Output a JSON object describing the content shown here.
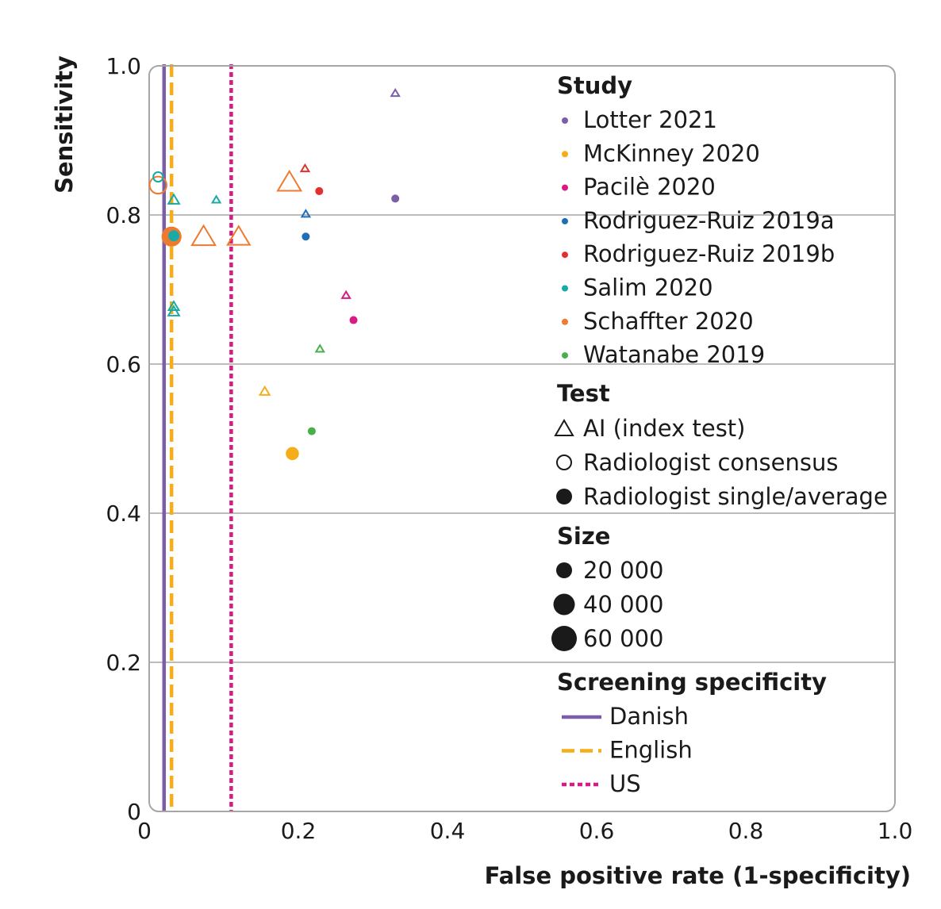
{
  "chart_data": {
    "type": "scatter",
    "xlabel": "False positive rate (1-specificity)",
    "ylabel": "Sensitivity",
    "xlim": [
      0,
      1.0
    ],
    "ylim": [
      0,
      1.0
    ],
    "x_ticks": [
      "0",
      "0.2",
      "0.4",
      "0.6",
      "0.8",
      "1.0"
    ],
    "y_ticks": [
      "0",
      "0.2",
      "0.4",
      "0.6",
      "0.8",
      "1.0"
    ],
    "grid": "horizontal",
    "legend_position": "right",
    "legend": {
      "study_title": "Study",
      "studies": [
        {
          "name": "Lotter 2021",
          "color": "#7a5fa8"
        },
        {
          "name": "McKinney 2020",
          "color": "#f5ae1a"
        },
        {
          "name": "Pacilè 2020",
          "color": "#d81b84"
        },
        {
          "name": "Rodriguez-Ruiz 2019a",
          "color": "#1f6fb5"
        },
        {
          "name": "Rodriguez-Ruiz 2019b",
          "color": "#e0312f"
        },
        {
          "name": "Salim 2020",
          "color": "#19aaa6"
        },
        {
          "name": "Schaffter 2020",
          "color": "#ee7a30"
        },
        {
          "name": "Watanabe 2019",
          "color": "#48b04a"
        }
      ],
      "test_title": "Test",
      "tests": [
        {
          "label": "AI (index test)",
          "shape": "triangle"
        },
        {
          "label": "Radiologist consensus",
          "shape": "open-circle"
        },
        {
          "label": "Radiologist single/average",
          "shape": "filled-circle"
        }
      ],
      "size_title": "Size",
      "sizes": [
        {
          "label": "20 000",
          "value": 20000
        },
        {
          "label": "40 000",
          "value": 40000
        },
        {
          "label": "60 000",
          "value": 60000
        }
      ],
      "screening_title": "Screening specificity",
      "screening": [
        {
          "label": "Danish",
          "style": "solid",
          "color": "#7a5fa8"
        },
        {
          "label": "English",
          "style": "dashed",
          "color": "#f5ae1a"
        },
        {
          "label": "US",
          "style": "dotted",
          "color": "#d81b84"
        }
      ]
    },
    "reference_lines": [
      {
        "name": "Danish",
        "x": 0.02
      },
      {
        "name": "English",
        "x": 0.03
      },
      {
        "name": "US",
        "x": 0.11
      }
    ],
    "points": [
      {
        "study": "Lotter 2021",
        "test": "AI (index test)",
        "x": 0.33,
        "y": 0.963,
        "size": 2000
      },
      {
        "study": "Lotter 2021",
        "test": "Radiologist single/average",
        "x": 0.33,
        "y": 0.822,
        "size": 2000
      },
      {
        "study": "McKinney 2020",
        "test": "AI (index test)",
        "x": 0.155,
        "y": 0.563,
        "size": 4000
      },
      {
        "study": "McKinney 2020",
        "test": "Radiologist single/average",
        "x": 0.192,
        "y": 0.48,
        "size": 10000
      },
      {
        "study": "Pacilè 2020",
        "test": "AI (index test)",
        "x": 0.264,
        "y": 0.692,
        "size": 2000
      },
      {
        "study": "Pacilè 2020",
        "test": "Radiologist single/average",
        "x": 0.274,
        "y": 0.659,
        "size": 2000
      },
      {
        "study": "Rodriguez-Ruiz 2019a",
        "test": "AI (index test)",
        "x": 0.21,
        "y": 0.801,
        "size": 2000
      },
      {
        "study": "Rodriguez-Ruiz 2019a",
        "test": "Radiologist single/average",
        "x": 0.21,
        "y": 0.771,
        "size": 2000
      },
      {
        "study": "Rodriguez-Ruiz 2019b",
        "test": "AI (index test)",
        "x": 0.209,
        "y": 0.862,
        "size": 2000
      },
      {
        "study": "Rodriguez-Ruiz 2019b",
        "test": "Radiologist single/average",
        "x": 0.228,
        "y": 0.832,
        "size": 2000
      },
      {
        "study": "Salim 2020",
        "test": "AI (index test)",
        "x": 0.09,
        "y": 0.82,
        "size": 2000
      },
      {
        "study": "Salim 2020",
        "test": "AI (index test)",
        "x": 0.033,
        "y": 0.82,
        "size": 6000
      },
      {
        "study": "Salim 2020",
        "test": "AI (index test)",
        "x": 0.033,
        "y": 0.67,
        "size": 6000
      },
      {
        "study": "Salim 2020",
        "test": "AI (index test)",
        "x": 0.033,
        "y": 0.677,
        "size": 5000
      },
      {
        "study": "Salim 2020",
        "test": "Radiologist consensus",
        "x": 0.012,
        "y": 0.851,
        "size": 4000
      },
      {
        "study": "Salim 2020",
        "test": "Radiologist single/average",
        "x": 0.033,
        "y": 0.772,
        "size": 6000
      },
      {
        "study": "Schaffter 2020",
        "test": "Radiologist consensus",
        "x": 0.012,
        "y": 0.84,
        "size": 20000
      },
      {
        "study": "Schaffter 2020",
        "test": "Radiologist single/average",
        "x": 0.03,
        "y": 0.771,
        "size": 30000
      },
      {
        "study": "Schaffter 2020",
        "test": "AI (index test)",
        "x": 0.188,
        "y": 0.843,
        "size": 45000
      },
      {
        "study": "Schaffter 2020",
        "test": "AI (index test)",
        "x": 0.073,
        "y": 0.77,
        "size": 45000
      },
      {
        "study": "Schaffter 2020",
        "test": "AI (index test)",
        "x": 0.12,
        "y": 0.77,
        "size": 40000
      },
      {
        "study": "Watanabe 2019",
        "test": "AI (index test)",
        "x": 0.229,
        "y": 0.62,
        "size": 2000
      },
      {
        "study": "Watanabe 2019",
        "test": "Radiologist single/average",
        "x": 0.218,
        "y": 0.51,
        "size": 2000
      }
    ]
  }
}
